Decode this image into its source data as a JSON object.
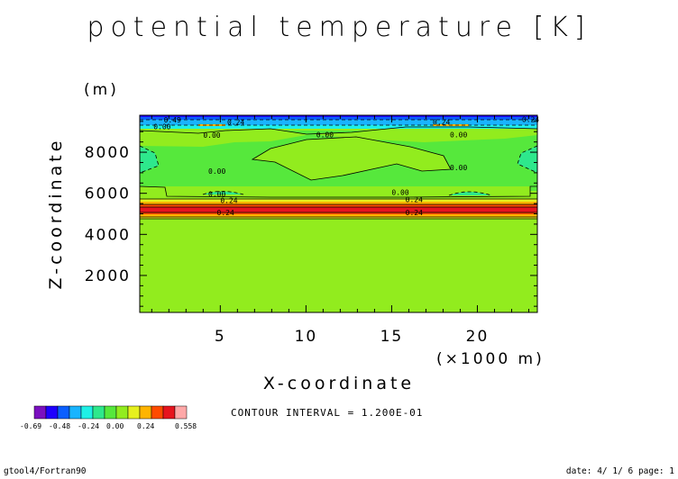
{
  "chart_data": {
    "type": "heatmap",
    "title": "potential temperature [K]",
    "xlabel": "X-coordinate",
    "x_unit": "(×1000 m)",
    "ylabel": "Z-coordinate",
    "y_unit": "(m)",
    "x_ticks": [
      5,
      10,
      15,
      20
    ],
    "y_ticks": [
      2000,
      4000,
      6000,
      8000
    ],
    "xlim": [
      0.3,
      23.5
    ],
    "ylim": [
      200,
      9800
    ],
    "contour_interval_label": "CONTOUR INTERVAL = 1.200E-01",
    "contour_labels": [
      {
        "text": "0.00",
        "x": 1.1,
        "y": 9130
      },
      {
        "text": "0.24",
        "x": 5.4,
        "y": 9350
      },
      {
        "text": "0.00",
        "x": 4.0,
        "y": 8700
      },
      {
        "text": "0.00",
        "x": 10.6,
        "y": 8730
      },
      {
        "text": "0.24",
        "x": 17.4,
        "y": 9330
      },
      {
        "text": "0.00",
        "x": 18.4,
        "y": 8720
      },
      {
        "text": "0.00",
        "x": 4.3,
        "y": 6950
      },
      {
        "text": "0.00",
        "x": 18.4,
        "y": 7130
      },
      {
        "text": "0.00",
        "x": 4.3,
        "y": 5830
      },
      {
        "text": "0.24",
        "x": 5.0,
        "y": 5530
      },
      {
        "text": "0.24",
        "x": 4.8,
        "y": 4930
      },
      {
        "text": "0.00",
        "x": 15.0,
        "y": 5920
      },
      {
        "text": "0.24",
        "x": 15.8,
        "y": 5560
      },
      {
        "text": "0.24",
        "x": 15.8,
        "y": 4940
      },
      {
        "text": "0.49",
        "x": 1.7,
        "y": 9460
      },
      {
        "text": "0.24",
        "x": 22.6,
        "y": 9470
      }
    ],
    "colorbar": {
      "colors": [
        "#7a0fbf",
        "#1e00ff",
        "#0a5fff",
        "#19b4ff",
        "#1ff0e6",
        "#2ee88c",
        "#56e83c",
        "#92ec1e",
        "#e6f01e",
        "#ffb400",
        "#ff4b00",
        "#e6141e",
        "#ffa8a8"
      ],
      "tick_labels": [
        "-0.69",
        "-0.48",
        "-0.24",
        "0.00",
        "0.24",
        "0.558"
      ]
    },
    "legend_placement": "bottom-left"
  },
  "footer": {
    "left": "gtool4/Fortran90",
    "right": "date: 4/ 1/ 6 page: 1"
  }
}
